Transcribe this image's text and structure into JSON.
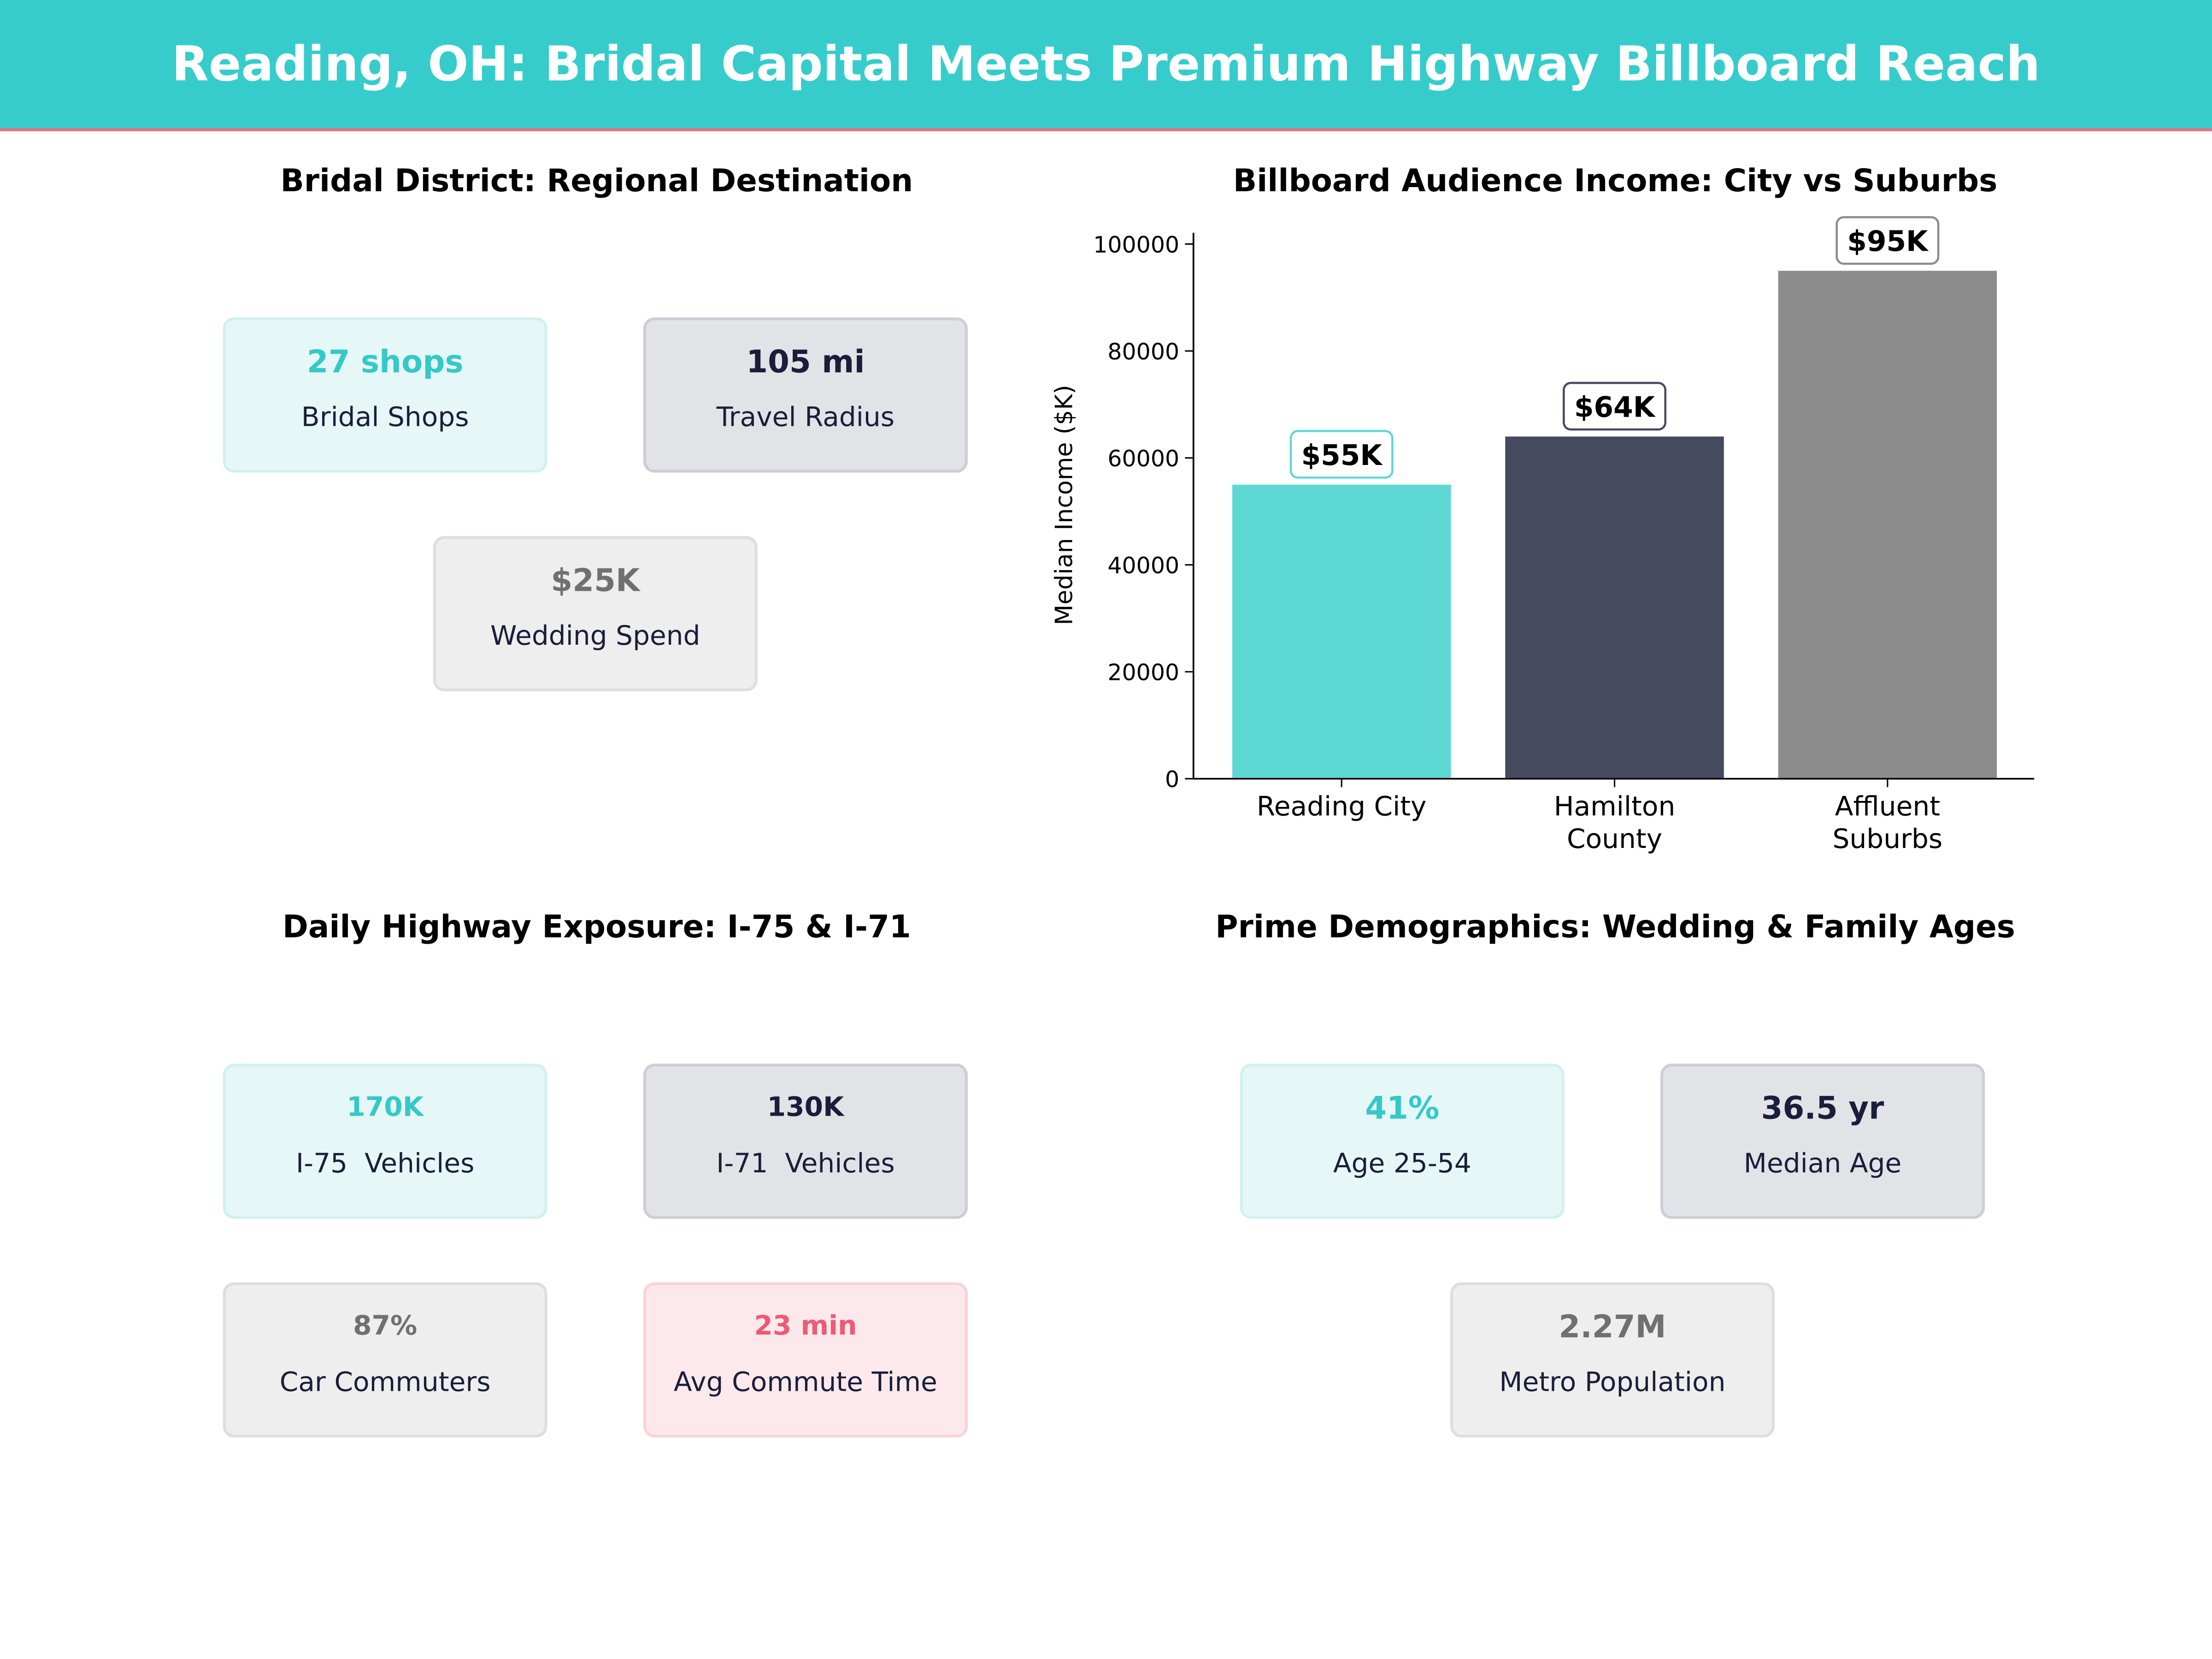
{
  "header": {
    "title": "Reading, OH: Bridal Capital Meets Premium Highway Billboard Reach"
  },
  "panels": {
    "bridal": {
      "title": "Bridal District: Regional Destination",
      "cards": [
        {
          "value": "27 shops",
          "label": "Bridal Shops",
          "style": "teal"
        },
        {
          "value": "105 mi",
          "label": "Travel Radius",
          "style": "dark"
        },
        {
          "value": "$25K",
          "label": "Wedding Spend",
          "style": "gray"
        }
      ]
    },
    "highway": {
      "title": "Daily Highway Exposure: I-75 & I-71",
      "cards": [
        {
          "value": "170K",
          "label": "I-75  Vehicles",
          "style": "teal"
        },
        {
          "value": "130K",
          "label": "I-71  Vehicles",
          "style": "dark"
        },
        {
          "value": "87%",
          "label": "Car Commuters",
          "style": "gray"
        },
        {
          "value": "23 min",
          "label": "Avg Commute Time",
          "style": "pink"
        }
      ]
    },
    "demographics": {
      "title": "Prime Demographics: Wedding & Family Ages",
      "cards": [
        {
          "value": "41%",
          "label": "Age 25-54",
          "style": "teal"
        },
        {
          "value": "36.5 yr",
          "label": "Median Age",
          "style": "dark"
        },
        {
          "value": "2.27M",
          "label": "Metro Population",
          "style": "gray"
        }
      ]
    }
  },
  "colors": {
    "header": "#36CCCC",
    "accent_line": "#EE6C7E",
    "teal": "#5ED8D5",
    "dark": "#464A5F",
    "gray": "#8C8C8C",
    "pink": "#EE5A74"
  },
  "chart_data": {
    "type": "bar",
    "title": "Billboard Audience Income: City vs Suburbs",
    "xlabel": "",
    "ylabel": "Median Income ($K)",
    "categories": [
      "Reading City",
      "Hamilton County",
      "Affluent Suburbs"
    ],
    "category_lines": [
      [
        "Reading City"
      ],
      [
        "Hamilton",
        "County"
      ],
      [
        "Affluent",
        "Suburbs"
      ]
    ],
    "values": [
      55000,
      64000,
      95000
    ],
    "data_labels": [
      "$55K",
      "$64K",
      "$95K"
    ],
    "bar_colors": [
      "#5ED8D5",
      "#464A5F",
      "#8C8C8C"
    ],
    "yticks": [
      0,
      20000,
      40000,
      60000,
      80000,
      100000
    ],
    "ylim": [
      0,
      102000
    ],
    "grid": false
  }
}
